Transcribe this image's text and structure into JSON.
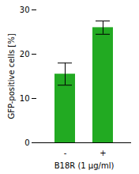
{
  "chart_data": {
    "type": "bar",
    "categories": [
      "-",
      "+"
    ],
    "values": [
      15.5,
      26.0
    ],
    "errors": [
      2.5,
      1.5
    ],
    "color": "#22aa22",
    "ylabel": "GFP-positive cells [%]",
    "xlabel": "B18R (1 µg/ml)",
    "ylim": [
      0,
      30
    ],
    "yticks": [
      0,
      10,
      20,
      30
    ],
    "grid": false
  }
}
